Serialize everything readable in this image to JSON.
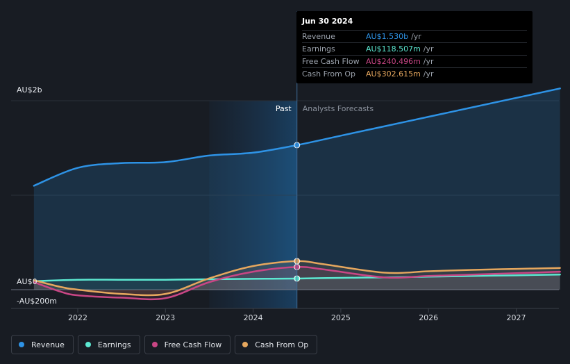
{
  "colors": {
    "revenue": "#2e93e6",
    "earnings": "#5ce8d1",
    "free_cash_flow": "#c94685",
    "cash_from_op": "#e6a75e",
    "background": "#181c23"
  },
  "tooltip": {
    "date": "Jun 30 2024",
    "rows": [
      {
        "name": "Revenue",
        "value": "AU$1.530b",
        "unit": "/yr",
        "color": "#2e93e6"
      },
      {
        "name": "Earnings",
        "value": "AU$118.507m",
        "unit": "/yr",
        "color": "#5ce8d1"
      },
      {
        "name": "Free Cash Flow",
        "value": "AU$240.496m",
        "unit": "/yr",
        "color": "#c94685"
      },
      {
        "name": "Cash From Op",
        "value": "AU$302.615m",
        "unit": "/yr",
        "color": "#e6a75e"
      }
    ]
  },
  "legend": [
    {
      "name": "Revenue",
      "color": "#2e93e6"
    },
    {
      "name": "Earnings",
      "color": "#5ce8d1"
    },
    {
      "name": "Free Cash Flow",
      "color": "#c94685"
    },
    {
      "name": "Cash From Op",
      "color": "#e6a75e"
    }
  ],
  "chart_data": {
    "type": "line",
    "y_tick_labels": [
      "AU$2b",
      "AU$0",
      "-AU$200m"
    ],
    "y_ticks": [
      2000,
      0,
      -200
    ],
    "ylim": [
      -200,
      2000
    ],
    "xlim": [
      2021.5,
      2027.5
    ],
    "x_ticks": [
      2022,
      2023,
      2024,
      2025,
      2026,
      2027
    ],
    "x_tick_labels": [
      "2022",
      "2023",
      "2024",
      "2025",
      "2026",
      "2027"
    ],
    "past_label": "Past",
    "forecast_label": "Analysts Forecasts",
    "past_start": 2023.5,
    "divider": 2024.5,
    "highlight_x": 2024.5,
    "series": [
      {
        "name": "Revenue",
        "key": "revenue",
        "x": [
          2021.5,
          2022.0,
          2022.5,
          2023.0,
          2023.5,
          2024.0,
          2024.5,
          2025.0,
          2025.5,
          2026.0,
          2026.5,
          2027.0,
          2027.5
        ],
        "values": [
          1100,
          1290,
          1340,
          1350,
          1420,
          1450,
          1530,
          1630,
          1730,
          1830,
          1930,
          2030,
          2130
        ]
      },
      {
        "name": "Earnings",
        "key": "earnings",
        "x": [
          2021.5,
          2022.0,
          2022.5,
          2023.0,
          2023.5,
          2024.0,
          2024.5,
          2025.0,
          2025.5,
          2026.0,
          2026.5,
          2027.0,
          2027.5
        ],
        "values": [
          90,
          105,
          105,
          105,
          110,
          115,
          118,
          125,
          130,
          138,
          145,
          152,
          160
        ]
      },
      {
        "name": "Free Cash Flow",
        "key": "free_cash_flow",
        "x": [
          2021.5,
          2021.8,
          2022.0,
          2022.5,
          2023.0,
          2023.5,
          2024.0,
          2024.5,
          2024.8,
          2025.5,
          2026.0,
          2026.5,
          2027.0,
          2027.5
        ],
        "values": [
          80,
          -20,
          -60,
          -85,
          -90,
          80,
          190,
          240,
          215,
          130,
          145,
          160,
          175,
          190
        ]
      },
      {
        "name": "Cash From Op",
        "key": "cash_from_op",
        "x": [
          2021.5,
          2021.8,
          2022.0,
          2022.5,
          2023.0,
          2023.5,
          2024.0,
          2024.5,
          2024.8,
          2025.5,
          2026.0,
          2026.5,
          2027.0,
          2027.5
        ],
        "values": [
          100,
          30,
          0,
          -45,
          -45,
          120,
          250,
          302,
          270,
          180,
          195,
          210,
          220,
          230
        ]
      }
    ]
  }
}
